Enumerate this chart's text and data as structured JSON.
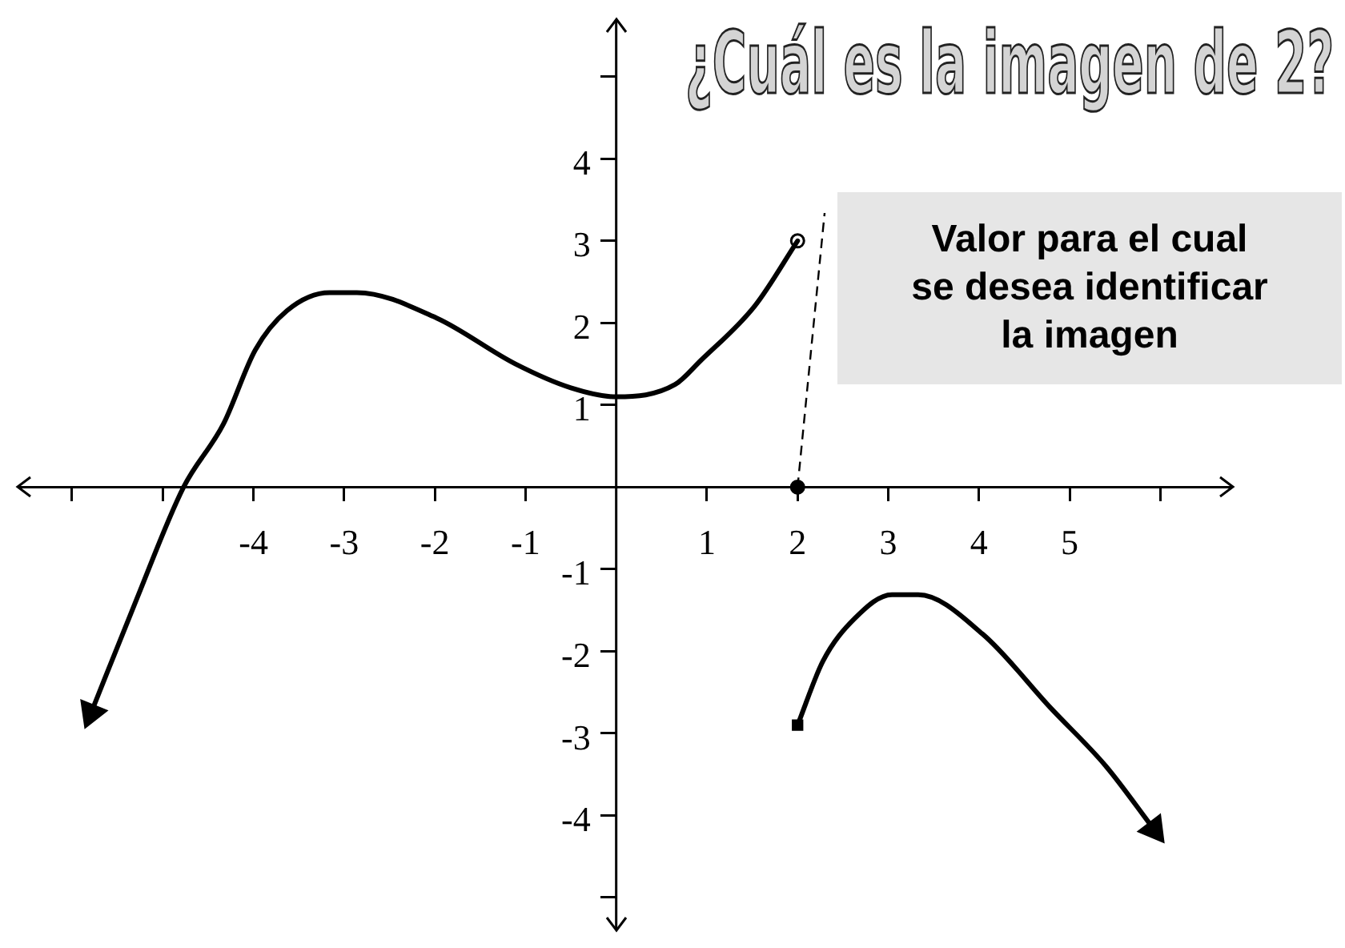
{
  "chart_data": {
    "type": "line",
    "title": "¿Cuál es la imagen de 2?",
    "annotations": [
      "Valor para el cual\nse desea identificar\nla imagen"
    ],
    "series": [
      {
        "type": "line",
        "color": "#000000",
        "marker": "none",
        "x": [
          -5.79,
          -5.3,
          -4.77,
          -4.33,
          -3.98,
          -3.63,
          -3.16,
          -2.86,
          -1.98,
          -1.11,
          -0.5,
          0,
          0.65,
          0.93,
          1.53,
          2
        ],
        "values": [
          -2.75,
          -1.4,
          0,
          0.77,
          1.67,
          2.15,
          2.37,
          2.37,
          2.06,
          1.5,
          1.21,
          1.1,
          1.25,
          1.54,
          2.21,
          3
        ]
      },
      {
        "type": "line",
        "color": "#000000",
        "marker": "none",
        "x": [
          2,
          2.28,
          2.63,
          3.04,
          3.33,
          4.04,
          4.79,
          5.4,
          5.93
        ],
        "values": [
          -2.9,
          -2.12,
          -1.6,
          -1.31,
          -1.31,
          -1.79,
          -2.69,
          -3.4,
          -4.17
        ]
      },
      {
        "type": "scatter",
        "color": "#ffffff",
        "marker": "circle",
        "x": [
          2
        ],
        "values": [
          3
        ]
      },
      {
        "type": "scatter",
        "color": "#000000",
        "marker": "square",
        "x": [
          2
        ],
        "values": [
          -2.9
        ]
      },
      {
        "type": "scatter",
        "color": "#000000",
        "marker": "circle",
        "x": [
          2
        ],
        "values": [
          0
        ]
      }
    ],
    "xlim": [
      -6.6,
      6.8
    ],
    "ylim": [
      -5.4,
      5.7
    ],
    "xticks": [
      {
        "value": -6,
        "label": null
      },
      {
        "value": -5,
        "label": null
      },
      -4,
      -3,
      -2,
      -1,
      1,
      2,
      3,
      4,
      5,
      {
        "value": 6,
        "label": null
      }
    ],
    "yticks": [
      {
        "value": -5,
        "label": null
      },
      -4,
      -3,
      -2,
      -1,
      1,
      2,
      3,
      4,
      {
        "value": 5,
        "label": null
      }
    ],
    "grid": false,
    "legend": false,
    "line_style": "solid"
  }
}
